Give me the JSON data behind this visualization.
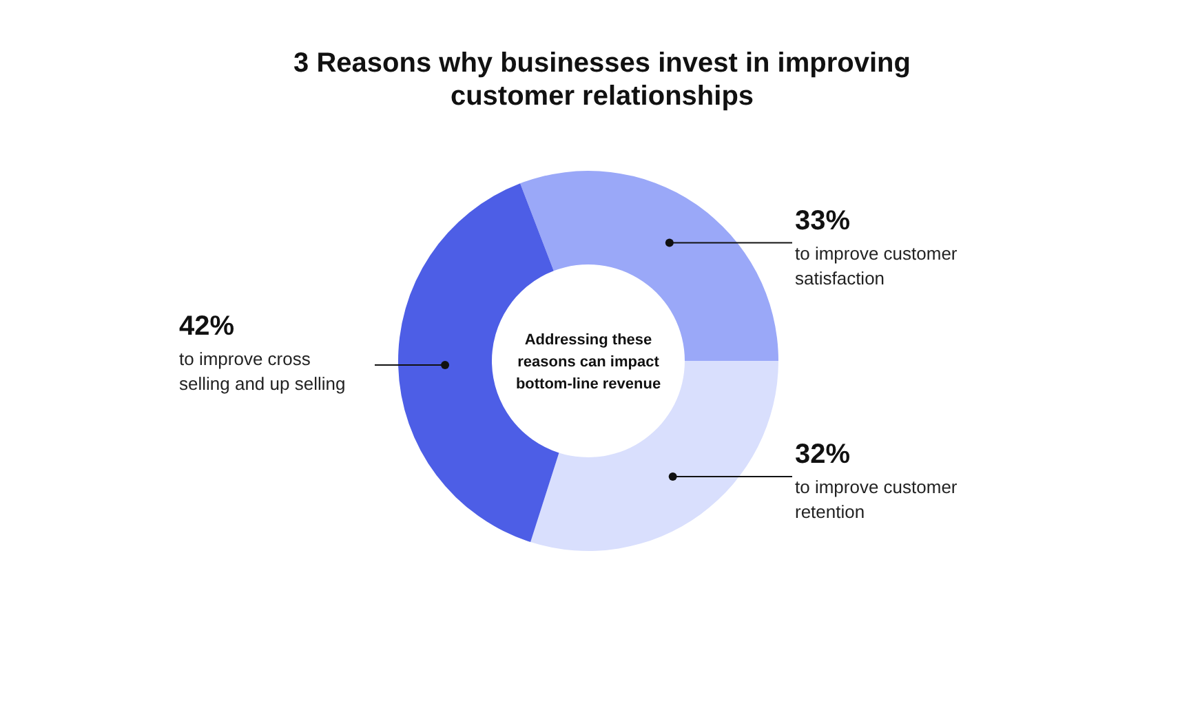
{
  "chart_data": {
    "type": "donut",
    "title": "3 Reasons why businesses invest in improving customer relationships",
    "categories": [
      "to improve customer satisfaction",
      "to improve customer retention",
      "to improve cross selling and up selling"
    ],
    "values": [
      33,
      32,
      42
    ],
    "value_labels": [
      "33%",
      "32%",
      "42%"
    ],
    "colors": [
      "#9aa8f8",
      "#d9dffd",
      "#4d5ee6"
    ],
    "annotations": [
      "Addressing these reasons can impact bottom-line revenue"
    ]
  }
}
